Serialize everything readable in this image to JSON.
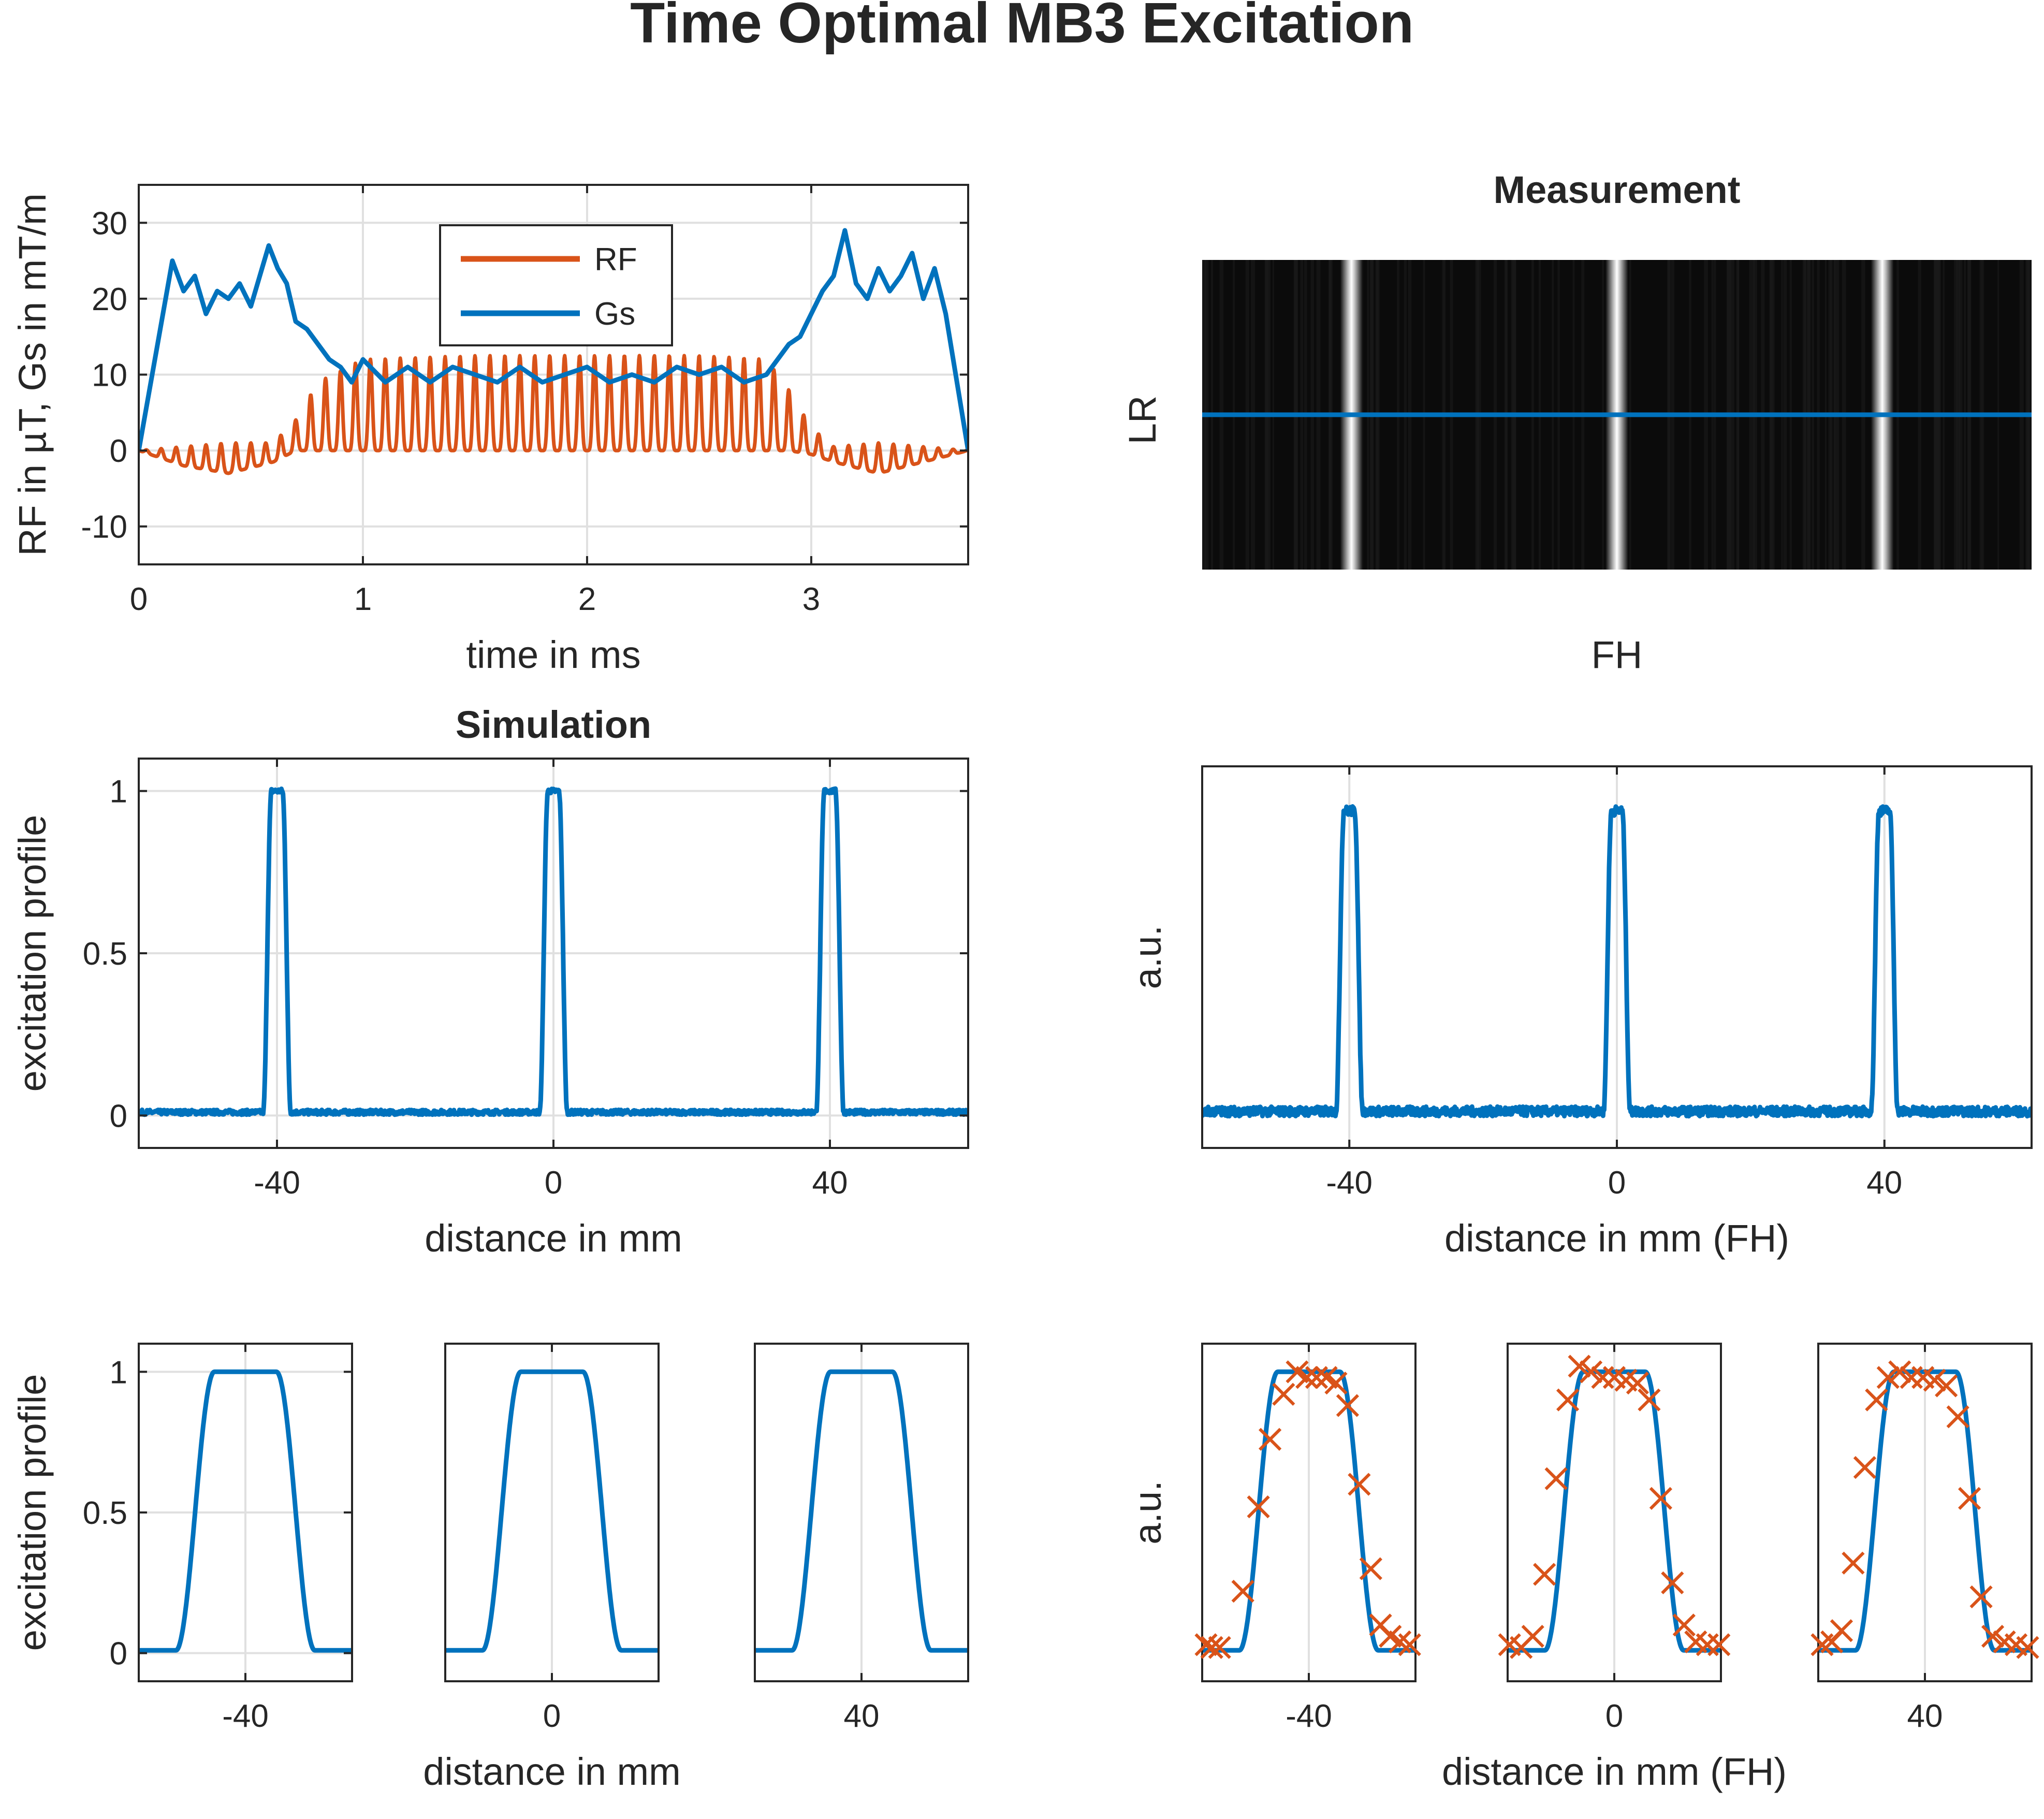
{
  "figure_title": "Time Optimal MB3 Excitation",
  "colors": {
    "blue": "#0072BD",
    "orange": "#D95319",
    "grid": "#E0E0E0",
    "axis": "#262626"
  },
  "chart_data": [
    {
      "id": "rf-gs",
      "type": "line",
      "title": "",
      "xlabel": "time in ms",
      "ylabel": "RF in µT, Gs in mT/m",
      "xlim": [
        0,
        3.7
      ],
      "ylim": [
        -15,
        35
      ],
      "xticks": [
        0,
        1,
        2,
        3
      ],
      "xticklabels": [
        "0",
        "1",
        "2",
        "3"
      ],
      "yticks": [
        -10,
        0,
        10,
        20,
        30
      ],
      "yticklabels": [
        "-10",
        "0",
        "10",
        "20",
        "30"
      ],
      "grid": true,
      "legend": "top-center",
      "series": [
        {
          "name": "RF",
          "color": "#D95319",
          "kind": "oscillating",
          "x": [
            0,
            0.2,
            0.4,
            0.6,
            0.7,
            0.8,
            1.0,
            1.5,
            2.0,
            2.5,
            2.8,
            2.9,
            3.0,
            3.1,
            3.3,
            3.5,
            3.7
          ],
          "upper": [
            0,
            0.5,
            1,
            1,
            4,
            9,
            12,
            12.5,
            12.5,
            12.5,
            12,
            8,
            3,
            0.5,
            1,
            0.5,
            0
          ],
          "lower": [
            0,
            -2,
            -3,
            -1.5,
            0,
            0,
            0,
            0,
            0,
            0,
            0,
            0,
            -0.5,
            -1.5,
            -3,
            -1.5,
            0
          ]
        },
        {
          "name": "Gs",
          "color": "#0072BD",
          "x": [
            0,
            0.15,
            0.2,
            0.25,
            0.3,
            0.35,
            0.4,
            0.45,
            0.5,
            0.55,
            0.58,
            0.62,
            0.66,
            0.7,
            0.75,
            0.8,
            0.85,
            0.9,
            0.95,
            1.0,
            1.1,
            1.2,
            1.3,
            1.4,
            1.5,
            1.6,
            1.7,
            1.8,
            1.9,
            2.0,
            2.1,
            2.2,
            2.3,
            2.4,
            2.5,
            2.6,
            2.7,
            2.8,
            2.85,
            2.9,
            2.95,
            3.0,
            3.05,
            3.1,
            3.15,
            3.2,
            3.25,
            3.3,
            3.35,
            3.4,
            3.45,
            3.5,
            3.55,
            3.6,
            3.7
          ],
          "y": [
            0,
            25,
            21,
            23,
            18,
            21,
            20,
            22,
            19,
            24,
            27,
            24,
            22,
            17,
            16,
            14,
            12,
            11,
            9,
            12,
            9,
            11,
            9,
            11,
            10,
            9,
            11,
            9,
            10,
            11,
            9,
            10,
            9,
            11,
            10,
            11,
            9,
            10,
            12,
            14,
            15,
            18,
            21,
            23,
            29,
            22,
            20,
            24,
            21,
            23,
            26,
            20,
            24,
            18,
            0
          ]
        }
      ]
    },
    {
      "id": "measurement-image",
      "type": "heatmap",
      "title": "Measurement",
      "xlabel": "FH",
      "ylabel": "LR",
      "grid": false,
      "bright_stripes_fraction": [
        0.18,
        0.5,
        0.82
      ],
      "profile_line_fraction": 0.5
    },
    {
      "id": "simulation-profile",
      "type": "line",
      "title": "Simulation",
      "xlabel": "distance in mm",
      "ylabel": "excitation profile",
      "xlim": [
        -60,
        60
      ],
      "ylim": [
        -0.1,
        1.1
      ],
      "xticks": [
        -40,
        0,
        40
      ],
      "xticklabels": [
        "-40",
        "0",
        "40"
      ],
      "yticks": [
        0,
        0.5,
        1
      ],
      "yticklabels": [
        "0",
        "0.5",
        "1"
      ],
      "grid": true,
      "series": [
        {
          "color": "#0072BD",
          "peaks": [
            -40,
            0,
            40
          ],
          "peak_height": 1.0,
          "flat_halfwidth": 0.8,
          "edge_width": 1.2,
          "baseline": 0.01
        }
      ]
    },
    {
      "id": "measured-profile",
      "type": "line",
      "title": "",
      "xlabel": "distance in mm (FH)",
      "ylabel": "a.u.",
      "xlim": [
        -62,
        62
      ],
      "ylim": [
        -0.1,
        1.1
      ],
      "xticks": [
        -40,
        0,
        40
      ],
      "xticklabels": [
        "-40",
        "0",
        "40"
      ],
      "yticks": [],
      "yticklabels": [],
      "grid": true,
      "series": [
        {
          "color": "#0072BD",
          "peaks": [
            -40,
            0,
            40
          ],
          "peak_height": 0.96,
          "flat_halfwidth": 0.8,
          "edge_width": 1.2,
          "baseline": 0.015
        }
      ]
    },
    {
      "id": "sim-zoom-m40",
      "type": "line",
      "xlabel": "",
      "ylabel": "excitation profile",
      "xlim": [
        -45.5,
        -34.5
      ],
      "ylim": [
        -0.1,
        1.1
      ],
      "xticks": [
        -40
      ],
      "xticklabels": [
        "-40"
      ],
      "yticks": [
        0,
        0.5,
        1
      ],
      "yticklabels": [
        "0",
        "0.5",
        "1"
      ],
      "grid": true,
      "series": [
        {
          "color": "#0072BD",
          "center": -40,
          "flat_halfwidth": 1.6,
          "edge_width": 0.9
        }
      ]
    },
    {
      "id": "sim-zoom-0",
      "type": "line",
      "xlabel": "distance in mm",
      "ylabel": "",
      "xlim": [
        -5.5,
        5.5
      ],
      "ylim": [
        -0.1,
        1.1
      ],
      "xticks": [
        0
      ],
      "xticklabels": [
        "0"
      ],
      "yticks": [],
      "yticklabels": [],
      "grid": true,
      "series": [
        {
          "color": "#0072BD",
          "center": 0,
          "flat_halfwidth": 1.6,
          "edge_width": 0.9
        }
      ]
    },
    {
      "id": "sim-zoom-40",
      "type": "line",
      "xlabel": "",
      "ylabel": "",
      "xlim": [
        34.5,
        45.5
      ],
      "ylim": [
        -0.1,
        1.1
      ],
      "xticks": [
        40
      ],
      "xticklabels": [
        "40"
      ],
      "yticks": [],
      "yticklabels": [],
      "grid": true,
      "series": [
        {
          "color": "#0072BD",
          "center": 40,
          "flat_halfwidth": 1.6,
          "edge_width": 0.9
        }
      ]
    },
    {
      "id": "meas-zoom-m40",
      "type": "scatter",
      "xlabel": "",
      "ylabel": "a.u.",
      "xlim": [
        -45.5,
        -34.5
      ],
      "ylim": [
        -0.1,
        1.1
      ],
      "xticks": [
        -40
      ],
      "xticklabels": [
        "-40"
      ],
      "yticks": [],
      "yticklabels": [],
      "grid": true,
      "series": [
        {
          "color": "#0072BD",
          "center": -40,
          "flat_halfwidth": 1.6,
          "edge_width": 0.9
        }
      ],
      "markers": {
        "color": "#D95319",
        "symbol": "x",
        "x": [
          -45.3,
          -45.0,
          -44.6,
          -43.4,
          -42.6,
          -42.0,
          -41.3,
          -40.6,
          -40.1,
          -39.6,
          -39.1,
          -38.6,
          -38.0,
          -37.4,
          -36.8,
          -36.3,
          -35.8,
          -35.3,
          -34.8
        ],
        "y": [
          0.03,
          0.02,
          0.02,
          0.22,
          0.52,
          0.76,
          0.92,
          1.0,
          0.98,
          0.98,
          0.98,
          0.96,
          0.88,
          0.6,
          0.3,
          0.1,
          0.06,
          0.04,
          0.03
        ]
      }
    },
    {
      "id": "meas-zoom-0",
      "type": "scatter",
      "xlabel": "distance in mm (FH)",
      "ylabel": "",
      "xlim": [
        -5.5,
        5.5
      ],
      "ylim": [
        -0.1,
        1.1
      ],
      "xticks": [
        0
      ],
      "xticklabels": [
        "0"
      ],
      "yticks": [],
      "yticklabels": [],
      "grid": true,
      "series": [
        {
          "color": "#0072BD",
          "center": 0,
          "flat_halfwidth": 1.6,
          "edge_width": 0.9
        }
      ],
      "markers": {
        "color": "#D95319",
        "symbol": "x",
        "x": [
          -5.4,
          -4.8,
          -4.2,
          -3.6,
          -3.0,
          -2.4,
          -1.8,
          -1.2,
          -0.6,
          0.0,
          0.6,
          1.2,
          1.8,
          2.4,
          3.0,
          3.6,
          4.2,
          4.8,
          5.4
        ],
        "y": [
          0.03,
          0.02,
          0.06,
          0.28,
          0.62,
          0.9,
          1.02,
          1.0,
          0.98,
          0.98,
          0.97,
          0.96,
          0.9,
          0.55,
          0.25,
          0.1,
          0.04,
          0.03,
          0.03
        ]
      }
    },
    {
      "id": "meas-zoom-40",
      "type": "scatter",
      "xlabel": "",
      "ylabel": "",
      "xlim": [
        34.5,
        45.5
      ],
      "ylim": [
        -0.1,
        1.1
      ],
      "xticks": [
        40
      ],
      "xticklabels": [
        "40"
      ],
      "yticks": [],
      "yticklabels": [],
      "grid": true,
      "series": [
        {
          "color": "#0072BD",
          "center": 40,
          "flat_halfwidth": 1.6,
          "edge_width": 0.9
        }
      ],
      "markers": {
        "color": "#D95319",
        "symbol": "x",
        "x": [
          34.7,
          35.2,
          35.7,
          36.3,
          36.9,
          37.5,
          38.1,
          38.7,
          39.3,
          39.9,
          40.5,
          41.1,
          41.7,
          42.3,
          42.9,
          43.5,
          44.1,
          44.7,
          45.3
        ],
        "y": [
          0.03,
          0.04,
          0.08,
          0.32,
          0.66,
          0.9,
          0.98,
          1.0,
          0.98,
          0.98,
          0.97,
          0.95,
          0.84,
          0.55,
          0.2,
          0.06,
          0.04,
          0.03,
          0.02
        ]
      }
    }
  ]
}
